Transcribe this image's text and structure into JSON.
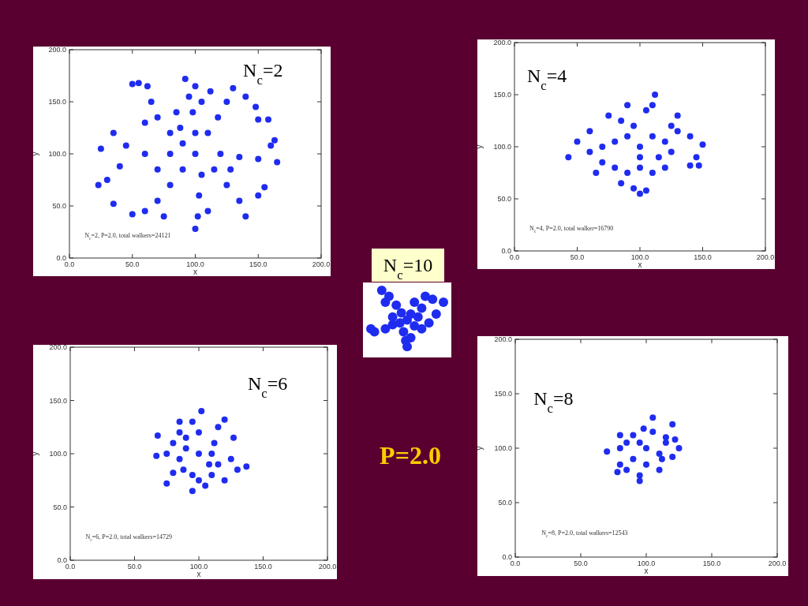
{
  "chart_data": [
    {
      "type": "scatter",
      "title": "N$_{c}$=2",
      "xlabel": "x",
      "ylabel": "y",
      "annotations": [
        "N$_{c}$=2, P=2.0, total walkers=24121"
      ],
      "color": "#1f2cf0",
      "marker": "circle",
      "x": [
        100,
        90,
        80,
        70,
        65,
        62,
        55,
        50,
        100,
        98,
        95,
        92,
        100,
        105,
        110,
        118,
        125,
        130,
        140,
        148,
        150,
        158,
        120,
        135,
        150,
        165,
        160,
        163,
        115,
        125,
        135,
        140,
        150,
        155,
        105,
        103,
        102,
        100,
        110,
        90,
        80,
        70,
        60,
        50,
        75,
        80,
        60,
        45,
        35,
        25,
        40,
        30,
        23,
        35,
        85,
        112,
        88,
        70,
        128,
        60
      ],
      "values": [
        100,
        110,
        120,
        135,
        150,
        165,
        168,
        167,
        120,
        140,
        155,
        172,
        165,
        150,
        120,
        135,
        150,
        163,
        155,
        145,
        133,
        133,
        100,
        97,
        95,
        92,
        108,
        113,
        85,
        70,
        55,
        40,
        60,
        68,
        80,
        60,
        40,
        28,
        45,
        85,
        70,
        55,
        45,
        42,
        40,
        100,
        100,
        108,
        120,
        105,
        88,
        75,
        70,
        52,
        140,
        160,
        125,
        85,
        85,
        130
      ],
      "xlim": [
        0,
        200
      ],
      "ylim": [
        0,
        200
      ],
      "xticks": [
        {
          "value": 0,
          "label": "0.0"
        },
        {
          "value": 50,
          "label": "50.0"
        },
        {
          "value": 100,
          "label": "100.0"
        },
        {
          "value": 150,
          "label": "150.0"
        },
        {
          "value": 200,
          "label": "200.0"
        }
      ],
      "yticks": [
        {
          "value": 0,
          "label": "0.0"
        },
        {
          "value": 50,
          "label": "50.0"
        },
        {
          "value": 100,
          "label": "100.0"
        },
        {
          "value": 150,
          "label": "150.0"
        },
        {
          "value": 200,
          "label": "200.0"
        }
      ]
    },
    {
      "type": "scatter",
      "title": "N$_{c}$=4",
      "xlabel": "x",
      "ylabel": "y",
      "annotations": [
        "N$_{c}$=4, P=2.0, total walker=16790"
      ],
      "color": "#1f2cf0",
      "marker": "circle",
      "x": [
        100,
        110,
        112,
        105,
        90,
        75,
        85,
        95,
        130,
        125,
        140,
        150,
        145,
        140,
        147,
        125,
        115,
        80,
        60,
        50,
        43,
        60,
        70,
        65,
        80,
        90,
        85,
        95,
        100,
        105,
        100,
        110,
        120,
        130,
        110,
        90,
        70,
        120,
        100
      ],
      "values": [
        100,
        140,
        150,
        135,
        140,
        130,
        125,
        120,
        130,
        120,
        110,
        102,
        90,
        82,
        82,
        95,
        90,
        105,
        115,
        105,
        90,
        95,
        85,
        75,
        80,
        75,
        65,
        60,
        55,
        58,
        80,
        75,
        80,
        115,
        110,
        110,
        100,
        105,
        90
      ],
      "xlim": [
        0,
        200
      ],
      "ylim": [
        0,
        200
      ],
      "xticks": [
        {
          "value": 0,
          "label": "0.0"
        },
        {
          "value": 50,
          "label": "50.0"
        },
        {
          "value": 100,
          "label": "100.0"
        },
        {
          "value": 150,
          "label": "150.0"
        },
        {
          "value": 200,
          "label": "200.0"
        }
      ],
      "yticks": [
        {
          "value": 0,
          "label": "0.0"
        },
        {
          "value": 50,
          "label": "50.0"
        },
        {
          "value": 100,
          "label": "100.0"
        },
        {
          "value": 150,
          "label": "150.0"
        },
        {
          "value": 200,
          "label": "200.0"
        }
      ]
    },
    {
      "type": "scatter",
      "title": "N$_{c}$=6",
      "xlabel": "x",
      "ylabel": "y",
      "annotations": [
        "N$_{c}$=6, P=2.0, total walkers=14729"
      ],
      "color": "#1f2cf0",
      "marker": "circle",
      "x": [
        100,
        100,
        102,
        95,
        85,
        90,
        115,
        120,
        127,
        112,
        80,
        68,
        75,
        67,
        85,
        80,
        75,
        88,
        95,
        95,
        100,
        105,
        110,
        120,
        115,
        125,
        137,
        130,
        110,
        90,
        108,
        85
      ],
      "values": [
        100,
        120,
        140,
        130,
        130,
        115,
        125,
        132,
        115,
        110,
        110,
        117,
        100,
        98,
        95,
        82,
        72,
        85,
        80,
        65,
        75,
        70,
        80,
        75,
        90,
        95,
        88,
        85,
        100,
        105,
        90,
        120
      ],
      "xlim": [
        0,
        200
      ],
      "ylim": [
        0,
        200
      ],
      "xticks": [
        {
          "value": 0,
          "label": "0.0"
        },
        {
          "value": 50,
          "label": "50.0"
        },
        {
          "value": 100,
          "label": "100.0"
        },
        {
          "value": 150,
          "label": "150.0"
        },
        {
          "value": 200,
          "label": "200.0"
        }
      ],
      "yticks": [
        {
          "value": 0,
          "label": "0.0"
        },
        {
          "value": 50,
          "label": "50.0"
        },
        {
          "value": 100,
          "label": "100.0"
        },
        {
          "value": 150,
          "label": "150.0"
        },
        {
          "value": 200,
          "label": "200.0"
        }
      ]
    },
    {
      "type": "scatter",
      "title": "N$_{c}$=8",
      "xlabel": "x",
      "ylabel": "y",
      "annotations": [
        "N$_{c}$=8, P=2.0, total walkers=12543"
      ],
      "color": "#1f2cf0",
      "marker": "circle",
      "x": [
        100,
        105,
        105,
        98,
        90,
        80,
        85,
        70,
        80,
        120,
        115,
        125,
        120,
        112,
        110,
        100,
        95,
        95,
        90,
        80,
        78,
        85,
        115,
        110,
        122,
        95
      ],
      "values": [
        100,
        115,
        128,
        118,
        112,
        112,
        105,
        97,
        100,
        122,
        110,
        100,
        92,
        90,
        80,
        85,
        75,
        70,
        90,
        85,
        78,
        80,
        105,
        95,
        108,
        105
      ],
      "xlim": [
        0,
        200
      ],
      "ylim": [
        0,
        200
      ],
      "xticks": [
        {
          "value": 0,
          "label": "0.0"
        },
        {
          "value": 50,
          "label": "50.0"
        },
        {
          "value": 100,
          "label": "100.0"
        },
        {
          "value": 150,
          "label": "150.0"
        },
        {
          "value": 200,
          "label": "200.0"
        }
      ],
      "yticks": [
        {
          "value": 0,
          "label": "0.0"
        },
        {
          "value": 50,
          "label": "50.0"
        },
        {
          "value": 100,
          "label": "100.0"
        },
        {
          "value": 150,
          "label": "150.0"
        },
        {
          "value": 200,
          "label": "200.0"
        }
      ]
    },
    {
      "type": "other",
      "title": "N$_{c}$=10",
      "annotations": [
        "P=2.0"
      ]
    }
  ]
}
